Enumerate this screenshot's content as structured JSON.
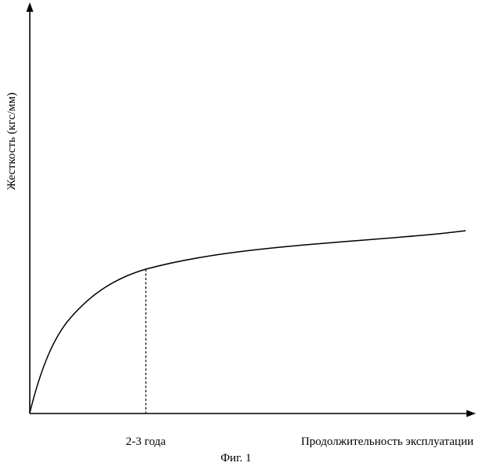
{
  "figure": {
    "caption": "Фиг. 1"
  },
  "axes": {
    "y_label": "Жесткость (кгс/мм)",
    "x_label": "Продолжительность эксплуатации",
    "marker_label": "2-3 года"
  },
  "colors": {
    "line": "#000000",
    "background": "#ffffff"
  }
}
